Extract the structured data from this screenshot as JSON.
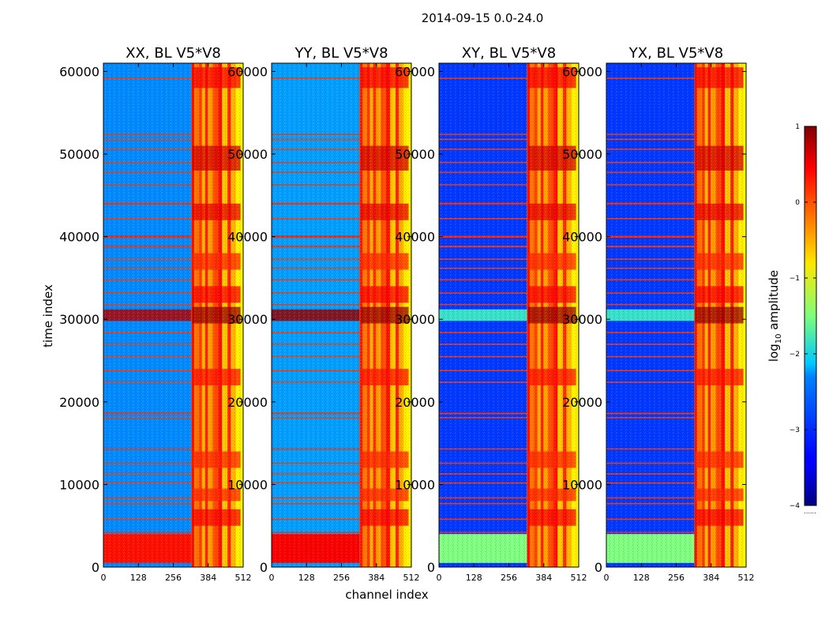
{
  "chart_data": {
    "type": "heatmap",
    "suptitle": "2014-09-15 0.0-24.0",
    "xlabel": "channel index",
    "ylabel": "time index",
    "xlim": [
      0,
      512
    ],
    "ylim": [
      0,
      61000
    ],
    "xticks": [
      0,
      128,
      256,
      384,
      512
    ],
    "yticks": [
      0,
      10000,
      20000,
      30000,
      40000,
      50000,
      60000
    ],
    "colormap": "jet",
    "panels": [
      {
        "title": "XX, BL V5*V8",
        "background_log": -2.7,
        "low_band_log": 0.3,
        "low_band_right_log": 0.3,
        "mid_blob_log": 0.75,
        "mid_blob_range": [
          0,
          340
        ]
      },
      {
        "title": "YY, BL V5*V8",
        "background_log": -2.6,
        "low_band_log": 0.4,
        "low_band_right_log": 0.3,
        "mid_blob_log": 0.9,
        "mid_blob_range": [
          0,
          512
        ]
      },
      {
        "title": "XY, BL V5*V8",
        "background_log": -3.1,
        "low_band_log": -1.5,
        "low_band_right_log": -1.2,
        "mid_blob_log": -1.8,
        "mid_blob_range": [
          0,
          512
        ]
      },
      {
        "title": "YX, BL V5*V8",
        "background_log": -3.1,
        "low_band_log": -1.5,
        "low_band_right_log": -1.2,
        "mid_blob_log": -1.8,
        "mid_blob_range": [
          0,
          512
        ]
      }
    ],
    "rfi_channel_band": [
      322,
      512
    ],
    "strong_rfi_columns": [
      {
        "channel": 334,
        "log_amp": 0.3
      },
      {
        "channel": 344,
        "log_amp": -0.2
      },
      {
        "channel": 362,
        "log_amp": 0.1
      },
      {
        "channel": 372,
        "log_amp": -0.5
      },
      {
        "channel": 384,
        "log_amp": 0.2
      },
      {
        "channel": 394,
        "log_amp": -0.4
      },
      {
        "channel": 412,
        "log_amp": 0.0
      },
      {
        "channel": 432,
        "log_amp": 0.3
      },
      {
        "channel": 446,
        "log_amp": -0.6
      },
      {
        "channel": 466,
        "log_amp": 0.2
      },
      {
        "channel": 478,
        "log_amp": -0.5
      },
      {
        "channel": 496,
        "log_amp": -0.8
      }
    ],
    "hot_time_bands": [
      {
        "t0": 29500,
        "t1": 31500,
        "log_amp": 0.9
      },
      {
        "t0": 32000,
        "t1": 34000,
        "log_amp": 0.4
      },
      {
        "t0": 42000,
        "t1": 44000,
        "log_amp": 0.5
      },
      {
        "t0": 48000,
        "t1": 51000,
        "log_amp": 0.6
      },
      {
        "t0": 5000,
        "t1": 7000,
        "log_amp": 0.4
      },
      {
        "t0": 8000,
        "t1": 9500,
        "log_amp": 0.2
      },
      {
        "t0": 12000,
        "t1": 14000,
        "log_amp": 0.2
      },
      {
        "t0": 22000,
        "t1": 24000,
        "log_amp": 0.3
      },
      {
        "t0": 36000,
        "t1": 38000,
        "log_amp": 0.2
      },
      {
        "t0": 58000,
        "t1": 60500,
        "log_amp": 0.4
      }
    ],
    "flag_rows": [
      {
        "t": 4200,
        "log_amp": 0.15,
        "h": 150
      },
      {
        "t": 5800,
        "log_amp": 0.1,
        "h": 120
      },
      {
        "t": 7700,
        "log_amp": 0.1,
        "h": 100
      },
      {
        "t": 8400,
        "log_amp": 0.1,
        "h": 100
      },
      {
        "t": 10200,
        "log_amp": 0.1,
        "h": 100
      },
      {
        "t": 11300,
        "log_amp": 0.1,
        "h": 100
      },
      {
        "t": 12600,
        "log_amp": 0.1,
        "h": 100
      },
      {
        "t": 14300,
        "log_amp": 0.15,
        "h": 150
      },
      {
        "t": 18100,
        "log_amp": 0.1,
        "h": 100
      },
      {
        "t": 18600,
        "log_amp": 0.15,
        "h": 180
      },
      {
        "t": 22400,
        "log_amp": 0.1,
        "h": 100
      },
      {
        "t": 23800,
        "log_amp": 0.1,
        "h": 100
      },
      {
        "t": 25500,
        "log_amp": 0.1,
        "h": 100
      },
      {
        "t": 27000,
        "log_amp": 0.1,
        "h": 100
      },
      {
        "t": 28400,
        "log_amp": 0.1,
        "h": 100
      },
      {
        "t": 31800,
        "log_amp": 0.1,
        "h": 100
      },
      {
        "t": 33200,
        "log_amp": 0.1,
        "h": 100
      },
      {
        "t": 34800,
        "log_amp": 0.1,
        "h": 100
      },
      {
        "t": 36200,
        "log_amp": 0.1,
        "h": 100
      },
      {
        "t": 37300,
        "log_amp": 0.1,
        "h": 100
      },
      {
        "t": 38800,
        "log_amp": 0.15,
        "h": 200
      },
      {
        "t": 40000,
        "log_amp": 0.2,
        "h": 250
      },
      {
        "t": 42200,
        "log_amp": 0.1,
        "h": 100
      },
      {
        "t": 44000,
        "log_amp": 0.15,
        "h": 200
      },
      {
        "t": 46300,
        "log_amp": 0.1,
        "h": 100
      },
      {
        "t": 47800,
        "log_amp": 0.1,
        "h": 100
      },
      {
        "t": 49000,
        "log_amp": 0.1,
        "h": 100
      },
      {
        "t": 50600,
        "log_amp": 0.1,
        "h": 100
      },
      {
        "t": 51800,
        "log_amp": 0.1,
        "h": 100
      },
      {
        "t": 52400,
        "log_amp": 0.1,
        "h": 100
      },
      {
        "t": 59200,
        "log_amp": 0.1,
        "h": 100
      }
    ],
    "low_band_time_range": [
      500,
      4000
    ],
    "colorbar": {
      "label_prefix": "log",
      "label_subscript": "10",
      "label_suffix": " amplitude",
      "range": [
        -4,
        1
      ],
      "ticks": [
        1,
        0,
        -1,
        -2,
        -3,
        -4
      ],
      "tick_labels": [
        "1",
        "0",
        "−1",
        "−2",
        "−3",
        "−4"
      ],
      "extra_text": "......"
    }
  }
}
